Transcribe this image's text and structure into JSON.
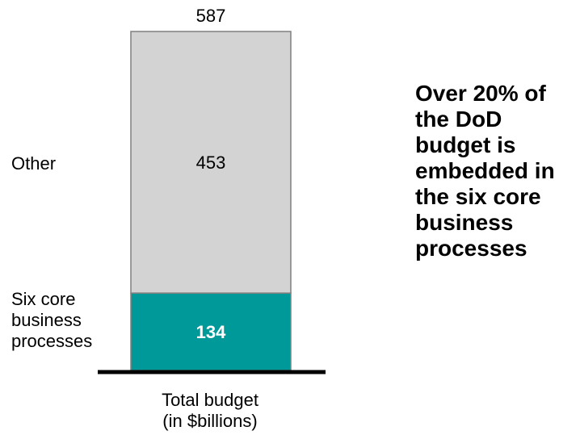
{
  "chart_data": {
    "type": "bar",
    "stacked": true,
    "categories": [
      "Total budget"
    ],
    "series": [
      {
        "name": "Six core business processes",
        "values": [
          134
        ],
        "color": "#009999",
        "label_color": "#ffffff"
      },
      {
        "name": "Other",
        "values": [
          453
        ],
        "color": "#d3d3d3",
        "label_color": "#000000"
      }
    ],
    "total": 587,
    "total_label": "587",
    "axis_label_line1": "Total budget",
    "axis_label_line2": "(in $billions)",
    "ylim": [
      0,
      587
    ],
    "grid": false
  },
  "labels": {
    "other": "Other",
    "six_core_line1": "Six core",
    "six_core_line2": "business",
    "six_core_line3": "processes"
  },
  "callout": {
    "lines": [
      "Over 20% of",
      "the DoD",
      "budget is",
      "embedded in",
      "the six core",
      "business",
      "processes"
    ]
  },
  "colors": {
    "teal": "#009999",
    "gray": "#d3d3d3",
    "outline": "#808080",
    "baseline": "#000000"
  }
}
